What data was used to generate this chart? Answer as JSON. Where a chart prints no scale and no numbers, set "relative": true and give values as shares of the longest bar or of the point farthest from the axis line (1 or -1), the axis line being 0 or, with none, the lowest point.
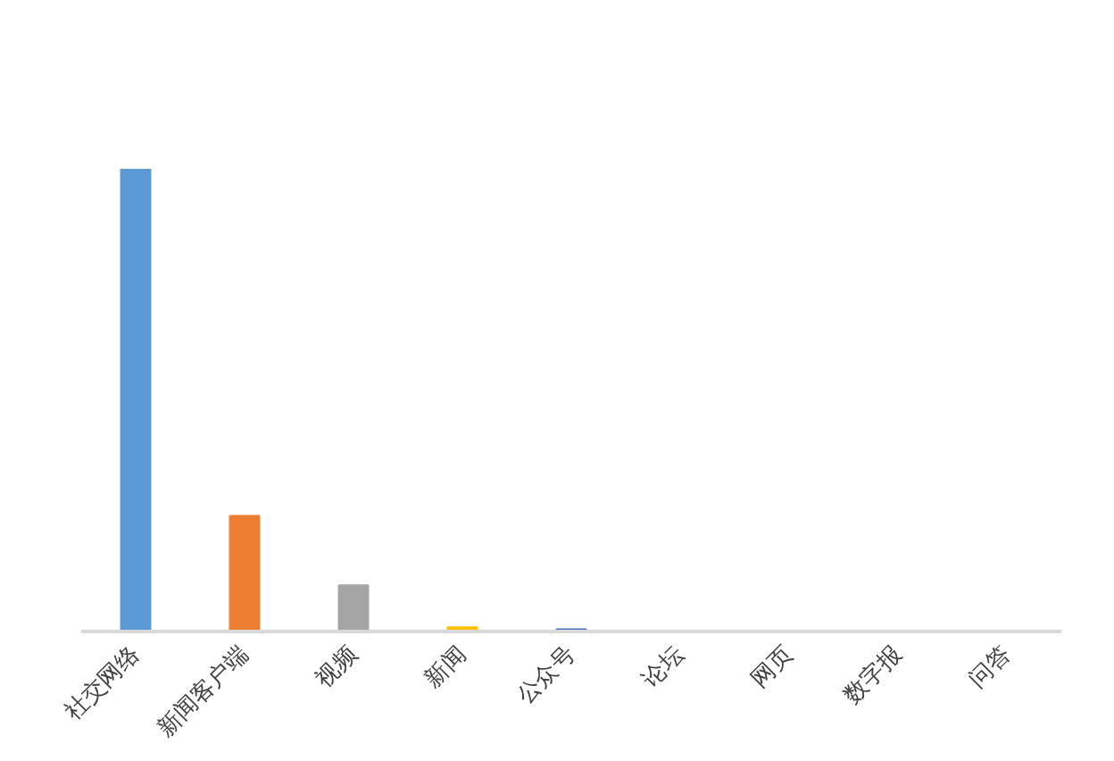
{
  "chart_data": {
    "type": "bar",
    "relative": true,
    "categories": [
      "社交网络",
      "新闻客户端",
      "视频",
      "新闻",
      "公众号",
      "论坛",
      "网页",
      "数字报",
      "问答"
    ],
    "values": [
      1,
      0.25,
      0.1,
      0.009,
      0.005,
      0,
      0,
      0,
      0
    ],
    "colors": [
      "#5b9bd5",
      "#ed7d31",
      "#a5a5a5",
      "#ffc000",
      "#4472c4",
      "#70ad47",
      "#255e91",
      "#9e480e",
      "#636363"
    ],
    "grid": false
  }
}
